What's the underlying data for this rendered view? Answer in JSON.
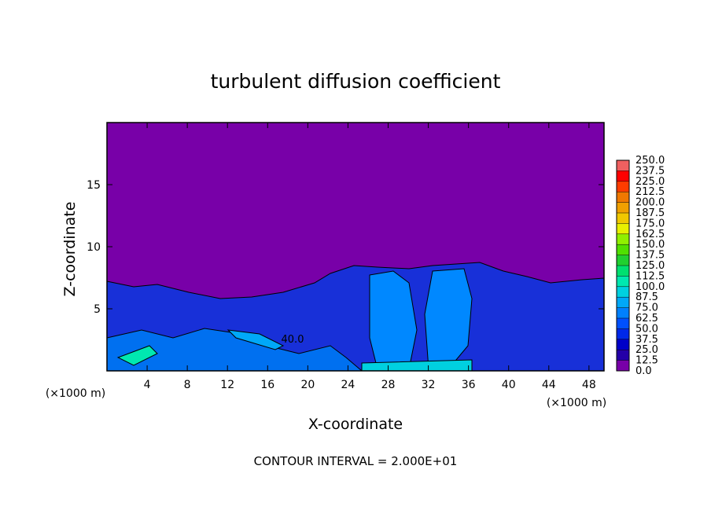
{
  "chart_data": {
    "type": "contour",
    "title": "turbulent diffusion coefficient",
    "x_label": "X-coordinate",
    "y_label": "Z-coordinate",
    "x_unit_left": "(×1000 m)",
    "x_unit_right": "(×1000 m)",
    "footer": "CONTOUR INTERVAL = 2.000E+01",
    "contour_label": "40.0",
    "xlim": [
      0,
      49.5
    ],
    "ylim": [
      0,
      20
    ],
    "xticks": [
      4,
      8,
      12,
      16,
      20,
      24,
      28,
      32,
      36,
      40,
      44,
      48
    ],
    "yticks": [
      5,
      10,
      15
    ],
    "colorbar": {
      "levels": [
        {
          "value": 0,
          "label": "0.0"
        },
        {
          "value": 12.5,
          "label": "12.5"
        },
        {
          "value": 25,
          "label": "25.0"
        },
        {
          "value": 37.5,
          "label": "37.5"
        },
        {
          "value": 50,
          "label": "50.0"
        },
        {
          "value": 62.5,
          "label": "62.5"
        },
        {
          "value": 75,
          "label": "75.0"
        },
        {
          "value": 87.5,
          "label": "87.5"
        },
        {
          "value": 100,
          "label": "100.0"
        },
        {
          "value": 112.5,
          "label": "112.5"
        },
        {
          "value": 125,
          "label": "125.0"
        },
        {
          "value": 137.5,
          "label": "137.5"
        },
        {
          "value": 150,
          "label": "150.0"
        },
        {
          "value": 162.5,
          "label": "162.5"
        },
        {
          "value": 175,
          "label": "175.0"
        },
        {
          "value": 187.5,
          "label": "187.5"
        },
        {
          "value": 200,
          "label": "200.0"
        },
        {
          "value": 212.5,
          "label": "212.5"
        },
        {
          "value": 225,
          "label": "225.0"
        },
        {
          "value": 237.5,
          "label": "237.5"
        },
        {
          "value": 250,
          "label": "250.0"
        }
      ],
      "colors": [
        "#7800a8",
        "#2400a8",
        "#0000c8",
        "#0028e8",
        "#0050ff",
        "#0080ff",
        "#00a8f8",
        "#00d0e0",
        "#00e8b0",
        "#00e070",
        "#20d030",
        "#50e000",
        "#90f000",
        "#e8f000",
        "#f0c800",
        "#f0a000",
        "#f07800",
        "#ff3c00",
        "#ff0000",
        "#f06060"
      ]
    }
  }
}
